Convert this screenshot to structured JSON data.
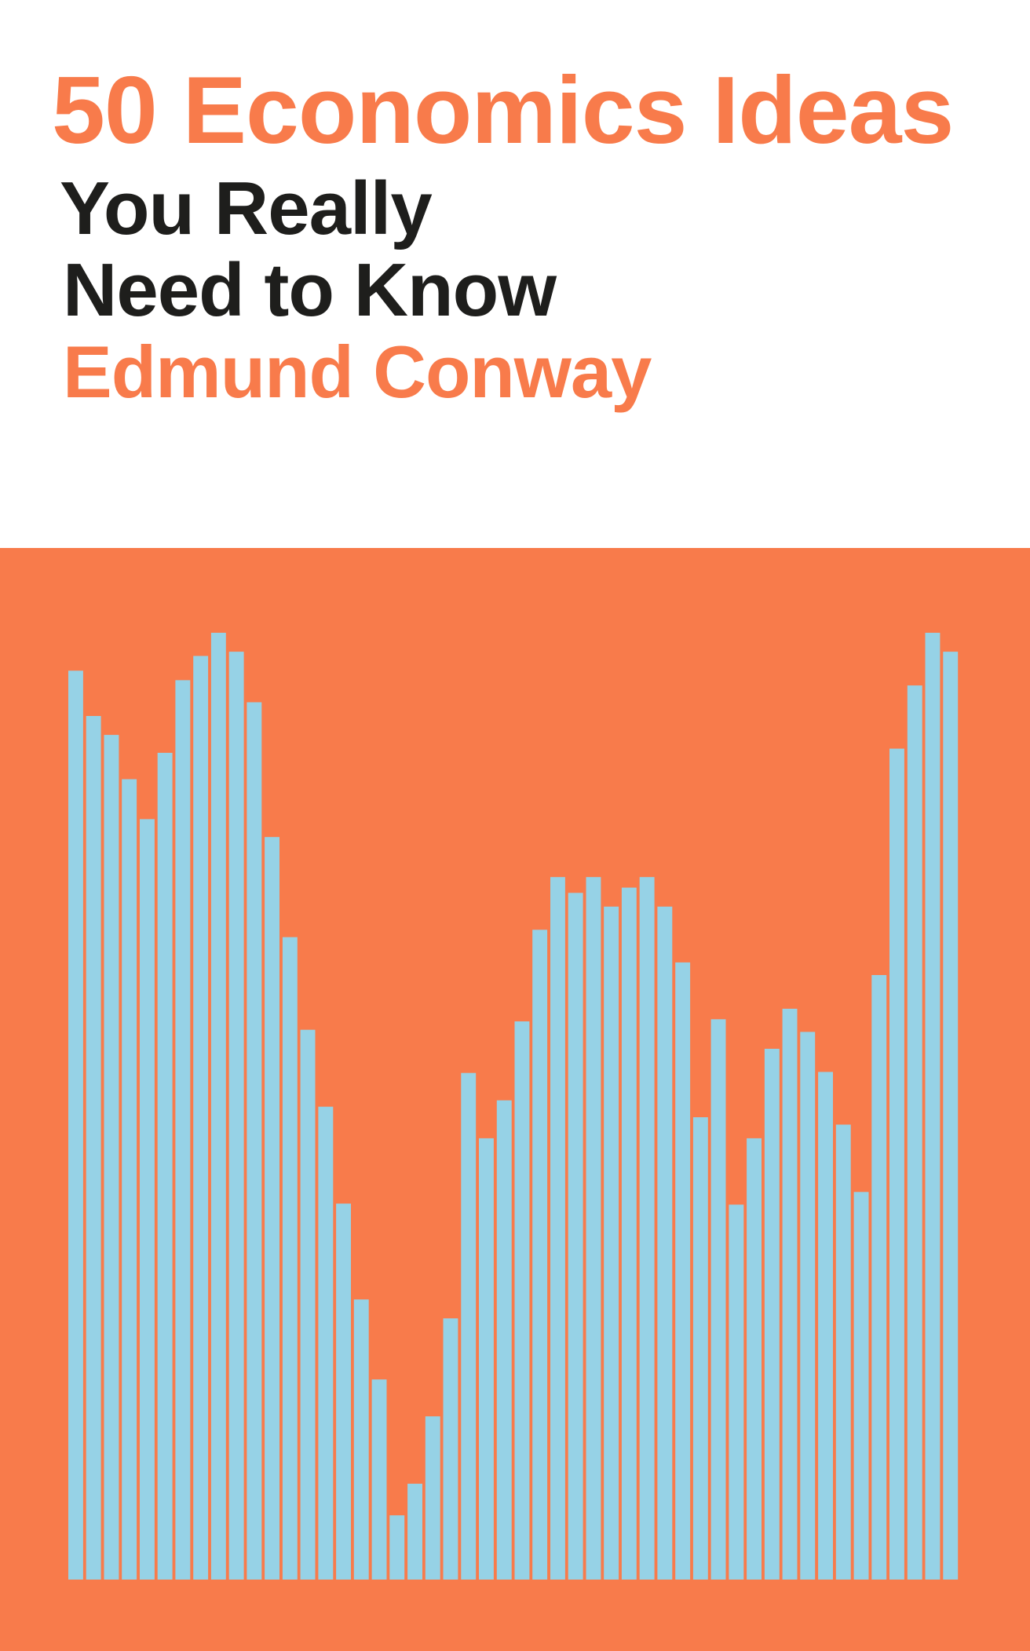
{
  "cover": {
    "title": "50 Economics Ideas",
    "subtitle_line1": "You Really",
    "subtitle_line2": "Need to Know",
    "author": "Edmund Conway"
  },
  "colors": {
    "accent": "#F87B4B",
    "text_dark": "#1E1E1C",
    "bar": "#96D2E6",
    "background": "#FFFFFF"
  },
  "bar_heights": [
    863,
    820,
    802,
    760,
    722,
    785,
    854,
    877,
    899,
    881,
    833,
    705,
    610,
    522,
    449,
    357,
    266,
    190,
    61,
    91,
    155,
    248,
    481,
    419,
    455,
    530,
    617,
    667,
    652,
    667,
    639,
    657,
    667,
    639,
    586,
    439,
    532,
    356,
    419,
    504,
    542,
    520,
    482,
    432,
    368,
    574,
    789,
    849,
    899,
    881
  ]
}
